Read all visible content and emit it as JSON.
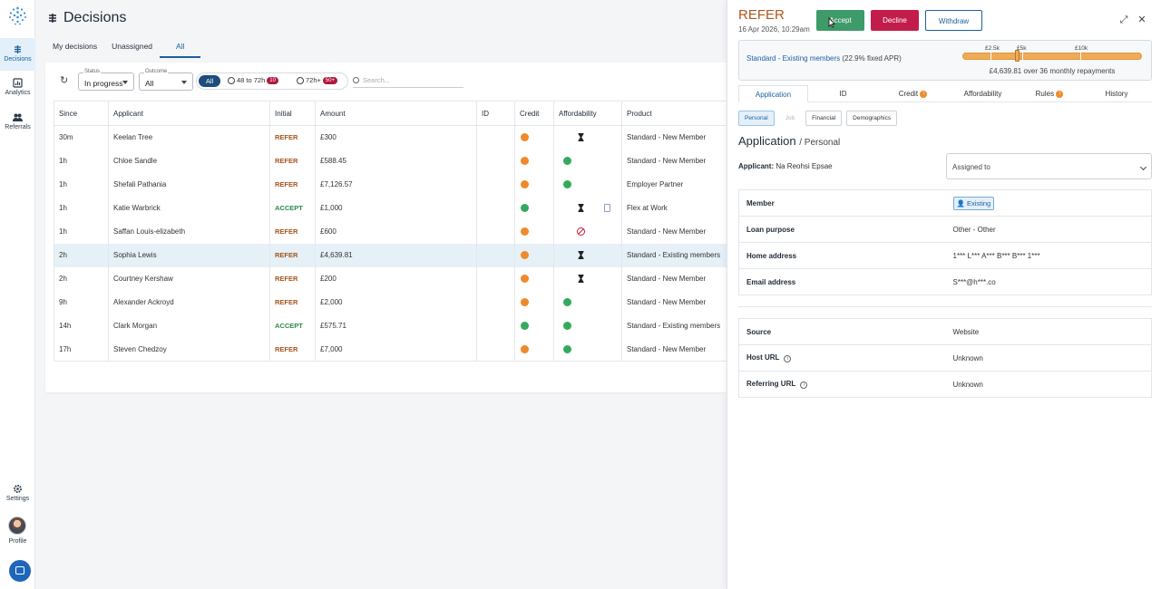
{
  "nav": {
    "items": [
      {
        "label": "Decisions",
        "icon": "decisions-icon",
        "active": true
      },
      {
        "label": "Analytics",
        "icon": "analytics-icon"
      },
      {
        "label": "Referrals",
        "icon": "referrals-icon"
      }
    ],
    "settings_label": "Settings",
    "profile_label": "Profile"
  },
  "header": {
    "title": "Decisions",
    "tabs": [
      "My decisions",
      "Unassigned",
      "All"
    ],
    "active_tab": "All"
  },
  "filters": {
    "status_label": "Status",
    "status_value": "In progress",
    "outcome_label": "Outcome",
    "outcome_value": "All",
    "chip_all": "All",
    "chip_48_72": "48 to 72h",
    "chip_48_72_count": "10",
    "chip_72plus": "72h+",
    "chip_72plus_count": "50+",
    "search_placeholder": "Search..."
  },
  "table": {
    "columns": [
      "Since",
      "Applicant",
      "Initial",
      "Amount",
      "ID",
      "Credit",
      "Affordability",
      "Product"
    ],
    "rows": [
      {
        "since": "30m",
        "applicant": "Keelan Tree",
        "initial": "REFER",
        "amount": "£300",
        "id": "",
        "credit": "orange",
        "affordability": "pending",
        "product": "Standard - New Member"
      },
      {
        "since": "1h",
        "applicant": "Chloe Sandle",
        "initial": "REFER",
        "amount": "£588.45",
        "id": "",
        "credit": "orange",
        "affordability": "pass",
        "product": "Standard - New Member"
      },
      {
        "since": "1h",
        "applicant": "Shefali Pathania",
        "initial": "REFER",
        "amount": "£7,126.57",
        "id": "",
        "credit": "orange",
        "affordability": "pass",
        "product": "Employer Partner"
      },
      {
        "since": "1h",
        "applicant": "Katie Warbrick",
        "initial": "ACCEPT",
        "amount": "£1,000",
        "id": "",
        "credit": "green",
        "affordability": "pending-doc",
        "product": "Flex at Work"
      },
      {
        "since": "1h",
        "applicant": "Saffan Louis-elizabeth",
        "initial": "REFER",
        "amount": "£600",
        "id": "",
        "credit": "orange",
        "affordability": "blocked",
        "product": "Standard - New Member"
      },
      {
        "since": "2h",
        "applicant": "Sophia Lewis",
        "initial": "REFER",
        "amount": "£4,639.81",
        "id": "",
        "credit": "orange",
        "affordability": "pending",
        "product": "Standard - Existing members",
        "selected": true
      },
      {
        "since": "2h",
        "applicant": "Courtney Kershaw",
        "initial": "REFER",
        "amount": "£200",
        "id": "",
        "credit": "orange",
        "affordability": "pending",
        "product": "Standard - New Member"
      },
      {
        "since": "9h",
        "applicant": "Alexander Ackroyd",
        "initial": "REFER",
        "amount": "£2,000",
        "id": "",
        "credit": "orange",
        "affordability": "pass",
        "product": "Standard - New Member"
      },
      {
        "since": "14h",
        "applicant": "Clark Morgan",
        "initial": "ACCEPT",
        "amount": "£575.71",
        "id": "",
        "credit": "green",
        "affordability": "pass",
        "product": "Standard - Existing members"
      },
      {
        "since": "17h",
        "applicant": "Steven Chedzoy",
        "initial": "REFER",
        "amount": "£7,000",
        "id": "",
        "credit": "orange",
        "affordability": "pass",
        "product": "Standard - New Member"
      }
    ]
  },
  "panel": {
    "outcome": "REFER",
    "timestamp": "16 Apr 2026, 10:29am",
    "accept_label": "Accept",
    "decline_label": "Decline",
    "withdraw_label": "Withdraw",
    "product_link": "Standard - Existing members",
    "apr": "(22.9% fixed APR)",
    "scale_labels": [
      "£2.5k",
      "£5k",
      "£10k"
    ],
    "repayment": "£4,639.81 over 36 monthly repayments",
    "tabs": [
      "Application",
      "ID",
      "Credit",
      "Affordability",
      "Rules",
      "History"
    ],
    "active_tab": "Application",
    "subtabs": [
      "Personal",
      "Job",
      "Financial",
      "Demographics"
    ],
    "section_title": "Application",
    "section_crumb": "/ Personal",
    "applicant_label": "Applicant:",
    "applicant_name": "Na Reohsi Epsae",
    "assigned_placeholder": "Assigned to",
    "details": [
      {
        "label": "Member",
        "value": "Existing"
      },
      {
        "label": "Loan purpose",
        "value": "Other - Other"
      },
      {
        "label": "Home address",
        "value": "1*** L*** A*** B*** B*** 1***"
      },
      {
        "label": "Email address",
        "value": "S***@h***.co"
      }
    ],
    "source": [
      {
        "label": "Source",
        "value": "Website"
      },
      {
        "label": "Host URL",
        "value": "Unknown"
      },
      {
        "label": "Referring URL",
        "value": "Unknown"
      }
    ]
  },
  "colors": {
    "primary": "#1b5f9e",
    "refer": "#a4541c",
    "accept": "#2b8a4c",
    "decline": "#c21d4a",
    "accept_button": "#3e9a68"
  }
}
